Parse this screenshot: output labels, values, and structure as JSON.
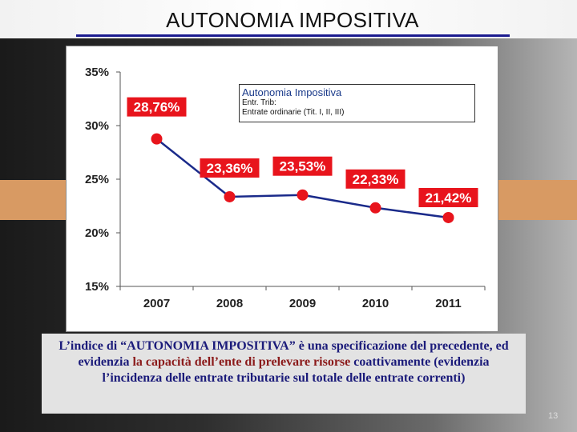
{
  "slide": {
    "title": "AUTONOMIA IMPOSITIVA",
    "page_number": "13"
  },
  "legend": {
    "title": "Autonomia Impositiva",
    "line1": "Entr. Trib:",
    "line2": "Entrate ordinarie (Tit. I, II, III)"
  },
  "description": {
    "part1": "L’indice di “AUTONOMIA IMPOSITIVA” è una specificazione del precedente, ed evidenzia ",
    "highlight": "la capacità dell’ente di prelevare risorse",
    "part2": " coattivamente (evidenzia l’incidenza delle entrate tributarie sul totale delle entrate correnti)"
  },
  "colors": {
    "line": "#1a2a8a",
    "marker": "#e8141c",
    "label_bg": "#e8141c",
    "label_text": "#ffffff"
  },
  "chart_data": {
    "type": "line",
    "title": "",
    "xlabel": "",
    "ylabel": "",
    "categories": [
      "2007",
      "2008",
      "2009",
      "2010",
      "2011"
    ],
    "series": [
      {
        "name": "Autonomia Impositiva",
        "values": [
          28.76,
          23.36,
          23.53,
          22.33,
          21.42
        ],
        "labels": [
          "28,76%",
          "23,36%",
          "23,53%",
          "22,33%",
          "21,42%"
        ]
      }
    ],
    "yticks": [
      "15%",
      "20%",
      "25%",
      "30%",
      "35%"
    ],
    "ytick_values": [
      15,
      20,
      25,
      30,
      35
    ],
    "ylim": [
      15,
      35
    ],
    "grid": false,
    "legend_position": "top-right"
  }
}
